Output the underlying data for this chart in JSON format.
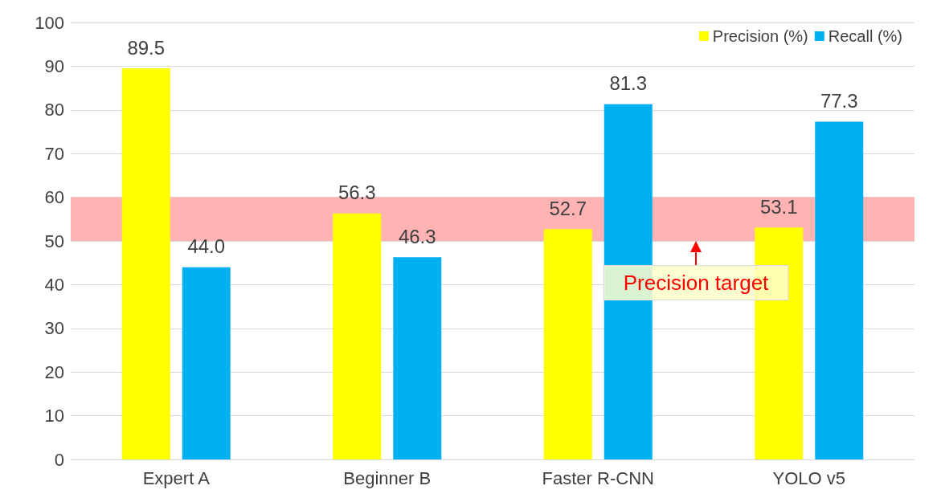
{
  "chart_data": {
    "type": "bar",
    "categories": [
      "Expert A",
      "Beginner B",
      "Faster R-CNN",
      "YOLO v5"
    ],
    "series": [
      {
        "name": "Precision (%)",
        "color": "#ffff00",
        "values": [
          89.5,
          56.3,
          52.7,
          53.1
        ],
        "value_labels": [
          "89.5",
          "56.3",
          "52.7",
          "53.1"
        ]
      },
      {
        "name": "Recall (%)",
        "color": "#00b0f0",
        "values": [
          44.0,
          46.3,
          81.3,
          77.3
        ],
        "value_labels": [
          "44.0",
          "46.3",
          "81.3",
          "77.3"
        ]
      }
    ],
    "ylim": [
      0,
      100
    ],
    "yticks": [
      0,
      10,
      20,
      30,
      40,
      50,
      60,
      70,
      80,
      90,
      100
    ],
    "grid": "y",
    "legend": "top right",
    "bands": [
      {
        "axis": "y",
        "from": 50,
        "to": 60,
        "label": "Precision target",
        "color": "#ffb3b3"
      }
    ]
  }
}
